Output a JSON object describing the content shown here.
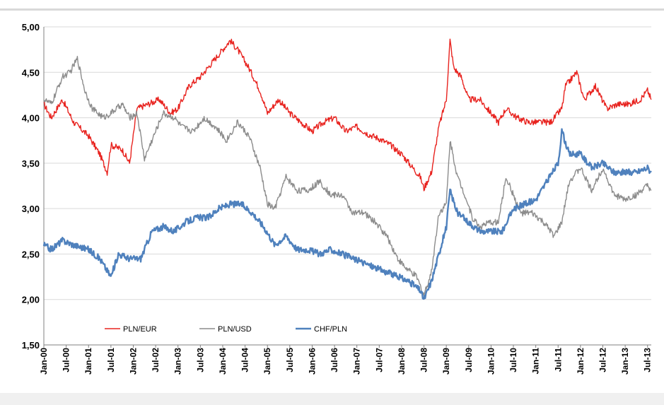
{
  "chart_data": {
    "type": "line",
    "title": "",
    "xlabel": "",
    "ylabel": "",
    "ylim": [
      1.5,
      5.0
    ],
    "y_ticks": [
      "1,50",
      "2,00",
      "2,50",
      "3,00",
      "3,50",
      "4,00",
      "4,50",
      "5,00"
    ],
    "y_tick_values": [
      1.5,
      2.0,
      2.5,
      3.0,
      3.5,
      4.0,
      4.5,
      5.0
    ],
    "x_ticks": [
      "Jan-00",
      "Jul-00",
      "Jan-01",
      "Jul-01",
      "Jan-02",
      "Jul-02",
      "Jan-03",
      "Jul-03",
      "Jan-04",
      "Jul-04",
      "Jan-05",
      "Jul-05",
      "Jan-06",
      "Jul-06",
      "Jan-07",
      "Jul-07",
      "Jan-08",
      "Jul-08",
      "Jan-09",
      "Jul-09",
      "Jan-10",
      "Jul-10",
      "Jan-11",
      "Jul-11",
      "Jan-12",
      "Jul-12",
      "Jan-13",
      "Jul-13"
    ],
    "xlim": [
      "2000-01",
      "2013-08"
    ],
    "grid": "horizontal",
    "legend_position": "bottom-left inside plot",
    "series": [
      {
        "name": "PLN/EUR",
        "color": "#e8231f",
        "points": [
          [
            "2000-01",
            4.15
          ],
          [
            "2000-03",
            4.0
          ],
          [
            "2000-06",
            4.2
          ],
          [
            "2000-09",
            3.95
          ],
          [
            "2001-01",
            3.8
          ],
          [
            "2001-04",
            3.6
          ],
          [
            "2001-06",
            3.4
          ],
          [
            "2001-07",
            3.7
          ],
          [
            "2001-10",
            3.65
          ],
          [
            "2001-12",
            3.5
          ],
          [
            "2002-02",
            4.1
          ],
          [
            "2002-05",
            4.15
          ],
          [
            "2002-08",
            4.2
          ],
          [
            "2002-11",
            4.05
          ],
          [
            "2003-01",
            4.1
          ],
          [
            "2003-04",
            4.35
          ],
          [
            "2003-07",
            4.45
          ],
          [
            "2003-10",
            4.6
          ],
          [
            "2004-01",
            4.75
          ],
          [
            "2004-03",
            4.85
          ],
          [
            "2004-05",
            4.75
          ],
          [
            "2004-08",
            4.55
          ],
          [
            "2004-11",
            4.3
          ],
          [
            "2005-01",
            4.05
          ],
          [
            "2005-04",
            4.2
          ],
          [
            "2005-07",
            4.05
          ],
          [
            "2005-10",
            3.95
          ],
          [
            "2006-01",
            3.85
          ],
          [
            "2006-04",
            3.95
          ],
          [
            "2006-07",
            4.0
          ],
          [
            "2006-10",
            3.85
          ],
          [
            "2007-01",
            3.9
          ],
          [
            "2007-04",
            3.82
          ],
          [
            "2007-07",
            3.77
          ],
          [
            "2007-10",
            3.7
          ],
          [
            "2008-01",
            3.6
          ],
          [
            "2008-03",
            3.5
          ],
          [
            "2008-06",
            3.35
          ],
          [
            "2008-07",
            3.22
          ],
          [
            "2008-09",
            3.4
          ],
          [
            "2008-11",
            3.9
          ],
          [
            "2009-01",
            4.2
          ],
          [
            "2009-02",
            4.85
          ],
          [
            "2009-03",
            4.55
          ],
          [
            "2009-05",
            4.45
          ],
          [
            "2009-07",
            4.2
          ],
          [
            "2009-10",
            4.2
          ],
          [
            "2010-01",
            4.05
          ],
          [
            "2010-03",
            3.95
          ],
          [
            "2010-05",
            4.1
          ],
          [
            "2010-08",
            4.0
          ],
          [
            "2010-11",
            3.95
          ],
          [
            "2011-02",
            3.95
          ],
          [
            "2011-05",
            3.95
          ],
          [
            "2011-08",
            4.1
          ],
          [
            "2011-09",
            4.35
          ],
          [
            "2011-12",
            4.5
          ],
          [
            "2012-02",
            4.2
          ],
          [
            "2012-05",
            4.35
          ],
          [
            "2012-08",
            4.1
          ],
          [
            "2012-11",
            4.15
          ],
          [
            "2013-02",
            4.15
          ],
          [
            "2013-05",
            4.2
          ],
          [
            "2013-07",
            4.3
          ],
          [
            "2013-08",
            4.2
          ]
        ]
      },
      {
        "name": "PLN/USD",
        "color": "#8c8c8c",
        "points": [
          [
            "2000-01",
            4.2
          ],
          [
            "2000-03",
            4.15
          ],
          [
            "2000-06",
            4.45
          ],
          [
            "2000-08",
            4.5
          ],
          [
            "2000-10",
            4.65
          ],
          [
            "2000-12",
            4.3
          ],
          [
            "2001-02",
            4.1
          ],
          [
            "2001-05",
            4.0
          ],
          [
            "2001-07",
            4.05
          ],
          [
            "2001-10",
            4.15
          ],
          [
            "2001-12",
            4.0
          ],
          [
            "2002-02",
            4.05
          ],
          [
            "2002-04",
            3.55
          ],
          [
            "2002-06",
            3.75
          ],
          [
            "2002-09",
            4.05
          ],
          [
            "2002-12",
            4.0
          ],
          [
            "2003-02",
            3.9
          ],
          [
            "2003-05",
            3.85
          ],
          [
            "2003-08",
            4.0
          ],
          [
            "2003-11",
            3.9
          ],
          [
            "2004-02",
            3.75
          ],
          [
            "2004-05",
            3.95
          ],
          [
            "2004-08",
            3.8
          ],
          [
            "2004-11",
            3.45
          ],
          [
            "2005-01",
            3.05
          ],
          [
            "2005-03",
            3.0
          ],
          [
            "2005-06",
            3.35
          ],
          [
            "2005-09",
            3.2
          ],
          [
            "2005-12",
            3.2
          ],
          [
            "2006-03",
            3.3
          ],
          [
            "2006-06",
            3.15
          ],
          [
            "2006-09",
            3.15
          ],
          [
            "2006-12",
            2.95
          ],
          [
            "2007-03",
            2.95
          ],
          [
            "2007-06",
            2.85
          ],
          [
            "2007-09",
            2.7
          ],
          [
            "2007-12",
            2.45
          ],
          [
            "2008-02",
            2.35
          ],
          [
            "2008-05",
            2.25
          ],
          [
            "2008-07",
            2.05
          ],
          [
            "2008-09",
            2.3
          ],
          [
            "2008-11",
            2.95
          ],
          [
            "2009-01",
            3.05
          ],
          [
            "2009-02",
            3.75
          ],
          [
            "2009-04",
            3.35
          ],
          [
            "2009-06",
            3.15
          ],
          [
            "2009-08",
            2.9
          ],
          [
            "2009-10",
            2.8
          ],
          [
            "2010-01",
            2.85
          ],
          [
            "2010-03",
            2.85
          ],
          [
            "2010-05",
            3.35
          ],
          [
            "2010-07",
            3.15
          ],
          [
            "2010-09",
            2.95
          ],
          [
            "2010-12",
            2.95
          ],
          [
            "2011-03",
            2.85
          ],
          [
            "2011-06",
            2.7
          ],
          [
            "2011-08",
            2.85
          ],
          [
            "2011-10",
            3.3
          ],
          [
            "2012-01",
            3.45
          ],
          [
            "2012-04",
            3.2
          ],
          [
            "2012-07",
            3.45
          ],
          [
            "2012-10",
            3.15
          ],
          [
            "2013-01",
            3.1
          ],
          [
            "2013-04",
            3.15
          ],
          [
            "2013-07",
            3.25
          ],
          [
            "2013-08",
            3.2
          ]
        ]
      },
      {
        "name": "CHF/PLN",
        "color": "#4f81bd",
        "points": [
          [
            "2000-01",
            2.6
          ],
          [
            "2000-03",
            2.55
          ],
          [
            "2000-06",
            2.65
          ],
          [
            "2000-09",
            2.6
          ],
          [
            "2001-01",
            2.55
          ],
          [
            "2001-04",
            2.45
          ],
          [
            "2001-07",
            2.25
          ],
          [
            "2001-09",
            2.5
          ],
          [
            "2001-12",
            2.45
          ],
          [
            "2002-03",
            2.45
          ],
          [
            "2002-06",
            2.75
          ],
          [
            "2002-09",
            2.8
          ],
          [
            "2002-12",
            2.75
          ],
          [
            "2003-03",
            2.85
          ],
          [
            "2003-06",
            2.9
          ],
          [
            "2003-09",
            2.9
          ],
          [
            "2003-12",
            3.0
          ],
          [
            "2004-03",
            3.05
          ],
          [
            "2004-06",
            3.05
          ],
          [
            "2004-09",
            2.95
          ],
          [
            "2004-12",
            2.8
          ],
          [
            "2005-03",
            2.6
          ],
          [
            "2005-06",
            2.7
          ],
          [
            "2005-09",
            2.55
          ],
          [
            "2005-12",
            2.55
          ],
          [
            "2006-03",
            2.5
          ],
          [
            "2006-06",
            2.55
          ],
          [
            "2006-09",
            2.5
          ],
          [
            "2006-12",
            2.45
          ],
          [
            "2007-03",
            2.4
          ],
          [
            "2007-06",
            2.35
          ],
          [
            "2007-09",
            2.3
          ],
          [
            "2007-12",
            2.25
          ],
          [
            "2008-03",
            2.2
          ],
          [
            "2008-06",
            2.1
          ],
          [
            "2008-07",
            2.0
          ],
          [
            "2008-09",
            2.2
          ],
          [
            "2008-11",
            2.5
          ],
          [
            "2009-01",
            2.8
          ],
          [
            "2009-02",
            3.2
          ],
          [
            "2009-04",
            2.95
          ],
          [
            "2009-07",
            2.85
          ],
          [
            "2009-10",
            2.75
          ],
          [
            "2010-01",
            2.75
          ],
          [
            "2010-04",
            2.75
          ],
          [
            "2010-07",
            3.0
          ],
          [
            "2010-10",
            3.05
          ],
          [
            "2011-01",
            3.1
          ],
          [
            "2011-04",
            3.3
          ],
          [
            "2011-07",
            3.5
          ],
          [
            "2011-08",
            3.85
          ],
          [
            "2011-10",
            3.6
          ],
          [
            "2012-01",
            3.6
          ],
          [
            "2012-04",
            3.45
          ],
          [
            "2012-07",
            3.5
          ],
          [
            "2012-10",
            3.4
          ],
          [
            "2013-01",
            3.4
          ],
          [
            "2013-04",
            3.4
          ],
          [
            "2013-07",
            3.45
          ],
          [
            "2013-08",
            3.4
          ]
        ]
      }
    ]
  }
}
